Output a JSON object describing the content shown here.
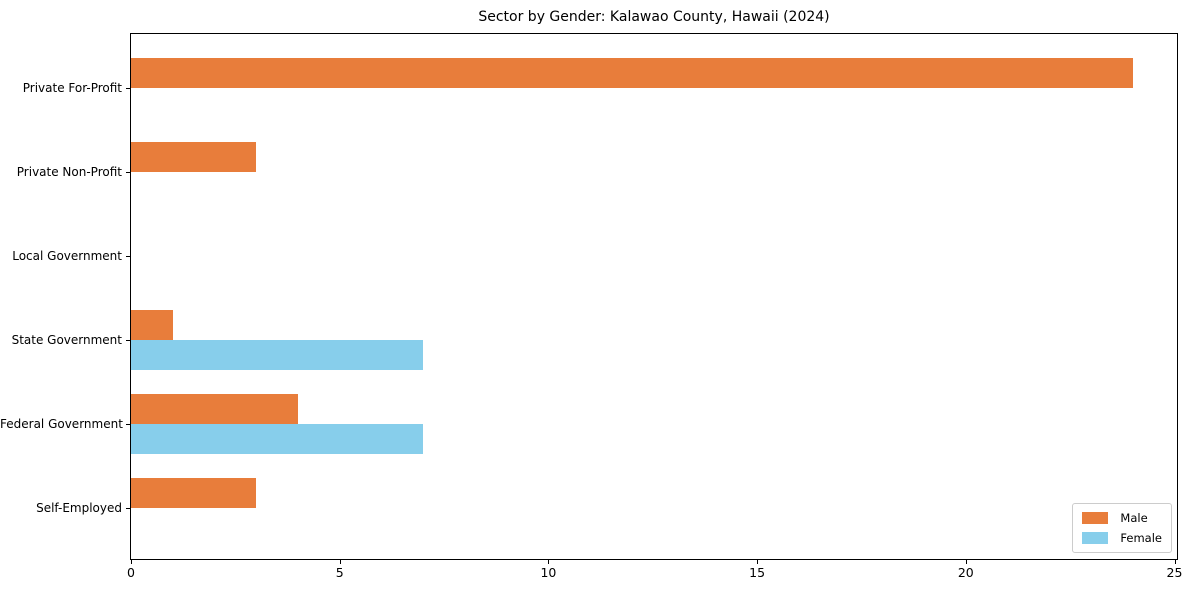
{
  "chart_data": {
    "type": "bar",
    "orientation": "horizontal",
    "title": "Sector by Gender: Kalawao County, Hawaii (2024)",
    "categories": [
      "Private For-Profit",
      "Private Non-Profit",
      "Local Government",
      "State Government",
      "Federal Government",
      "Self-Employed"
    ],
    "series": [
      {
        "name": "Male",
        "color": "#e87d3b",
        "values": [
          24,
          3,
          0,
          1,
          4,
          3
        ]
      },
      {
        "name": "Female",
        "color": "#87ceeb",
        "values": [
          0,
          0,
          0,
          7,
          7,
          0
        ]
      }
    ],
    "xlabel": "",
    "ylabel": "",
    "xlim": [
      0,
      25.06
    ],
    "xticks": [
      0,
      5,
      10,
      15,
      20,
      25
    ],
    "grid": false,
    "legend_position": "lower right",
    "background_color": "#ffffff",
    "text_color": "#000000"
  }
}
